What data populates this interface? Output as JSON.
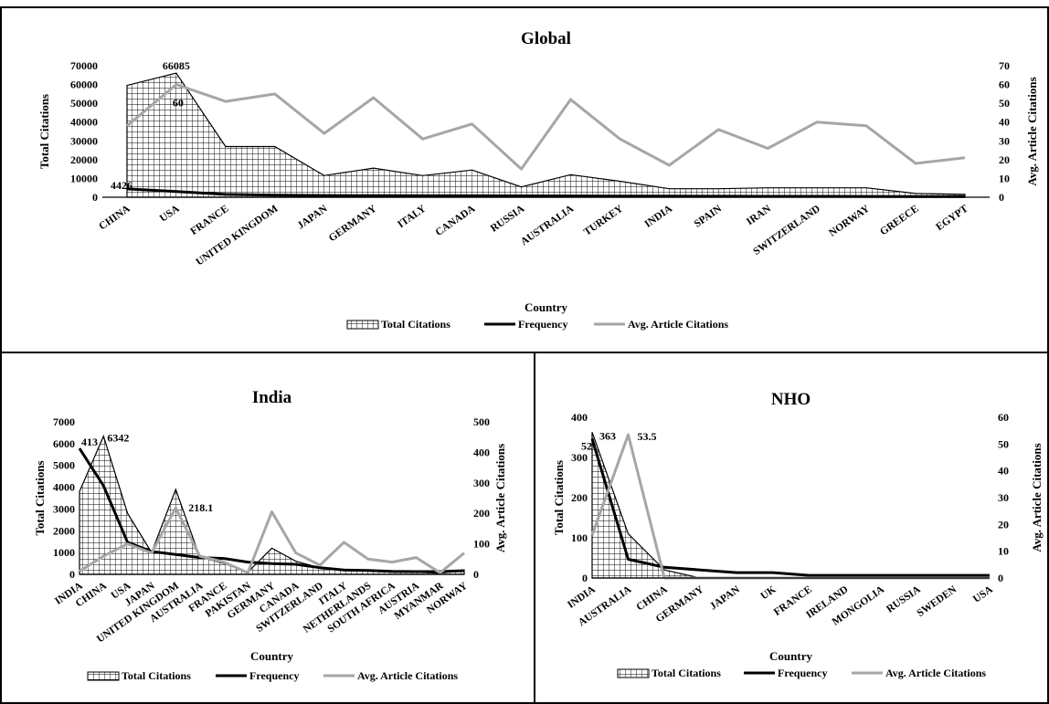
{
  "legend": {
    "total": "Total Citations",
    "frequency": "Frequency",
    "avg": "Avg. Article Citations"
  },
  "colors": {
    "hatch": "#000000",
    "frequency": "#000000",
    "avg": "#a6a6a6"
  },
  "chart_data": [
    {
      "type": "line",
      "title": "Global",
      "xlabel": "Country",
      "ylabel": "Total Citations",
      "y2label": "Avg. Article Citations",
      "ylim": [
        0,
        70000
      ],
      "yticks": [
        0,
        10000,
        20000,
        30000,
        40000,
        50000,
        60000,
        70000
      ],
      "y2lim": [
        0,
        70
      ],
      "y2ticks": [
        0,
        10,
        20,
        30,
        40,
        50,
        60,
        70
      ],
      "categories": [
        "CHINA",
        "USA",
        "FRANCE",
        "UNITED KINGDOM",
        "JAPAN",
        "GERMANY",
        "ITALY",
        "CANADA",
        "RUSSIA",
        "AUSTRALIA",
        "TURKEY",
        "INDIA",
        "SPAIN",
        "IRAN",
        "SWITZERLAND",
        "NORWAY",
        "GREECE",
        "EGYPT"
      ],
      "series": [
        {
          "name": "Total Citations",
          "kind": "area",
          "axis": "left",
          "values": [
            59500,
            66085,
            27000,
            27000,
            11500,
            15500,
            11500,
            14500,
            5500,
            12000,
            8500,
            4500,
            4500,
            5000,
            5000,
            5000,
            2000,
            1500
          ]
        },
        {
          "name": "Frequency",
          "kind": "line",
          "axis": "left",
          "values": [
            4426,
            3000,
            1500,
            1100,
            900,
            850,
            800,
            800,
            750,
            700,
            650,
            600,
            550,
            500,
            500,
            450,
            400,
            350
          ]
        },
        {
          "name": "Avg. Article Citations",
          "kind": "line",
          "axis": "right",
          "values": [
            38,
            60,
            51,
            55,
            34,
            53,
            31,
            39,
            15,
            52,
            31,
            17,
            36,
            26,
            40,
            38,
            18,
            21
          ]
        }
      ],
      "annotations": [
        {
          "text": "66085",
          "series": 0,
          "index": 1
        },
        {
          "text": "60",
          "series": 2,
          "index": 1
        },
        {
          "text": "4426",
          "series": 1,
          "index": 0
        }
      ],
      "legend_position": "bottom"
    },
    {
      "type": "line",
      "title": "India",
      "xlabel": "Country",
      "ylabel": "Total Citations",
      "y2label": "Avg. Article Citations",
      "ylim": [
        0,
        7000
      ],
      "yticks": [
        0,
        1000,
        2000,
        3000,
        4000,
        5000,
        6000,
        7000
      ],
      "y2lim": [
        0,
        500
      ],
      "y2ticks": [
        0,
        100,
        200,
        300,
        400,
        500
      ],
      "categories": [
        "INDIA",
        "CHINA",
        "USA",
        "JAPAN",
        "UNITED KINGDOM",
        "AUSTRALIA",
        "FRANCE",
        "PAKISTAN",
        "GERMANY",
        "CANADA",
        "SWITZERLAND",
        "ITALY",
        "NETHERLANDS",
        "SOUTH AFRICA",
        "AUSTRIA",
        "MYANMAR",
        "NORWAY"
      ],
      "series": [
        {
          "name": "Total Citations",
          "kind": "area",
          "axis": "left",
          "values": [
            3800,
            6342,
            2800,
            1000,
            3900,
            800,
            500,
            100,
            1200,
            600,
            300,
            200,
            150,
            100,
            100,
            50,
            200
          ]
        },
        {
          "name": "Frequency",
          "kind": "line",
          "axis": "right",
          "values": [
            413,
            290,
            105,
            75,
            65,
            55,
            52,
            40,
            35,
            33,
            22,
            14,
            13,
            10,
            9,
            9,
            12
          ]
        },
        {
          "name": "Avg. Article Citations",
          "kind": "line",
          "axis": "right",
          "values": [
            10,
            60,
            100,
            70,
            218.1,
            60,
            40,
            5,
            205,
            70,
            30,
            105,
            50,
            40,
            55,
            5,
            70
          ]
        }
      ],
      "annotations": [
        {
          "text": "413",
          "series": 1,
          "index": 0
        },
        {
          "text": "6342",
          "series": 0,
          "index": 1
        },
        {
          "text": "218.1",
          "series": 2,
          "index": 4
        }
      ],
      "legend_position": "bottom"
    },
    {
      "type": "line",
      "title": "NHO",
      "xlabel": "Country",
      "ylabel": "Total Citations",
      "y2label": "Avg. Article Citations",
      "ylim": [
        0,
        400
      ],
      "yticks": [
        0,
        100,
        200,
        300,
        400
      ],
      "y2lim": [
        0,
        60
      ],
      "y2ticks": [
        0,
        10,
        20,
        30,
        40,
        50,
        60
      ],
      "categories": [
        "INDIA",
        "AUSTRALIA",
        "CHINA",
        "GERMANY",
        "JAPAN",
        "UK",
        "FRANCE",
        "IRELAND",
        "MONGOLIA",
        "RUSSIA",
        "SWEDEN",
        "USA"
      ],
      "series": [
        {
          "name": "Total Citations",
          "kind": "area",
          "axis": "left",
          "values": [
            363,
            110,
            20,
            0,
            0,
            0,
            0,
            0,
            0,
            0,
            0,
            0
          ]
        },
        {
          "name": "Frequency",
          "kind": "line",
          "axis": "right",
          "values": [
            52,
            7,
            4,
            3,
            2,
            2,
            1,
            1,
            1,
            1,
            1,
            1
          ]
        },
        {
          "name": "Avg. Article Citations",
          "kind": "line",
          "axis": "right",
          "values": [
            16,
            53.5,
            0,
            0,
            0,
            0,
            0,
            0,
            0,
            0,
            0,
            0
          ]
        }
      ],
      "annotations": [
        {
          "text": "52",
          "series": 1,
          "index": 0
        },
        {
          "text": "363",
          "series": 0,
          "index": 0
        },
        {
          "text": "53.5",
          "series": 2,
          "index": 1
        }
      ],
      "legend_position": "bottom"
    }
  ]
}
